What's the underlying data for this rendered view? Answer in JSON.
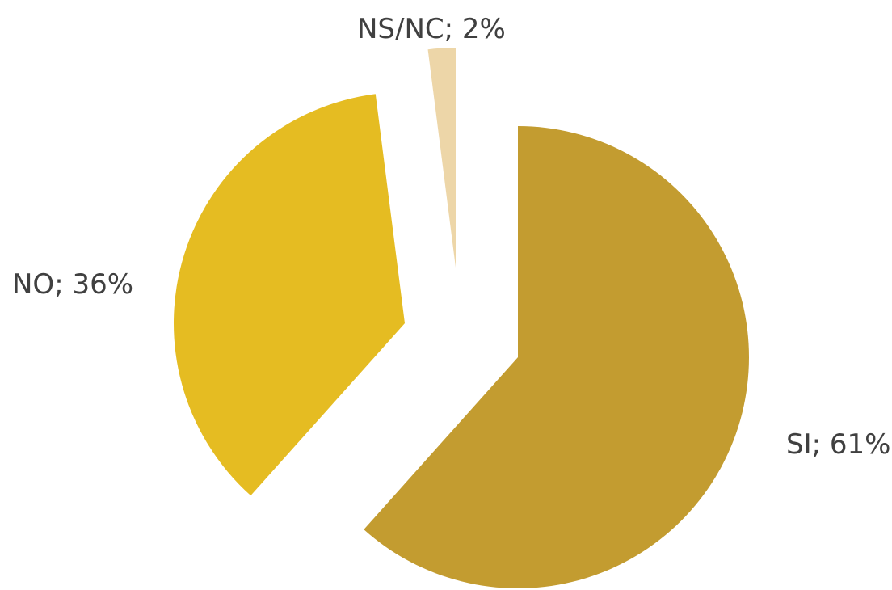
{
  "chart_data": {
    "type": "pie",
    "title": "",
    "slices": [
      {
        "category": "SI",
        "value": 61,
        "label": "SI; 61%",
        "color": "#C39C30"
      },
      {
        "category": "NO",
        "value": 36,
        "label": "NO; 36%",
        "color": "#E5BC22"
      },
      {
        "category": "NS/NC",
        "value": 2,
        "label": "NS/NC; 2%",
        "color": "#EDD6A8"
      }
    ],
    "start": "12 o'clock",
    "direction": "clockwise",
    "exploded": true,
    "legend": "none"
  }
}
